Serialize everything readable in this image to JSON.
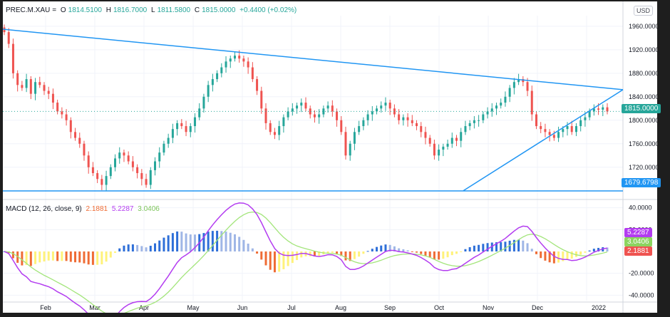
{
  "header": {
    "symbol": "PREC.M.XAU",
    "indicator": "=",
    "o_label": "O",
    "o_value": "1814.5100",
    "h_label": "H",
    "h_value": "1816.7000",
    "l_label": "L",
    "l_value": "1811.5800",
    "c_label": "C",
    "c_value": "1815.0000",
    "change": "+0.4400 (+0.02%)"
  },
  "currency_button": "USD",
  "macd_header": {
    "title": "MACD (12, 26, close, 9)",
    "hist_value": "2.1881",
    "macd_value": "5.2287",
    "signal_value": "3.0406"
  },
  "colors": {
    "up": "#26a69a",
    "down": "#ef5350",
    "line": "#2196f3",
    "macd_line": "#b33cf0",
    "signal_line": "#a3e57b",
    "hist_pos": "#2e6fd8",
    "hist_neg": "#ef6c35",
    "hist_fade": "#fff27a"
  },
  "chart_data": [
    {
      "type": "candlestick",
      "x_tick_labels": [
        "Feb",
        "Mar",
        "Apr",
        "May",
        "Jun",
        "Jul",
        "Aug",
        "Sep",
        "Oct",
        "Nov",
        "Dec",
        "2022"
      ],
      "y_tick_labels": [
        "1960.0000",
        "1920.0000",
        "1880.0000",
        "1840.0000",
        "1800.0000",
        "1760.0000",
        "1720.0000"
      ],
      "ylim": [
        1670,
        1978
      ],
      "price_label": "1815.0000",
      "line_label": "1679.6798",
      "horizontal_line": 1679.6798,
      "closes": [
        1950,
        1930,
        1880,
        1860,
        1855,
        1870,
        1845,
        1865,
        1860,
        1850,
        1845,
        1830,
        1815,
        1810,
        1800,
        1780,
        1770,
        1760,
        1740,
        1720,
        1710,
        1700,
        1690,
        1705,
        1720,
        1735,
        1745,
        1740,
        1730,
        1720,
        1710,
        1700,
        1690,
        1715,
        1730,
        1745,
        1760,
        1770,
        1785,
        1795,
        1790,
        1780,
        1790,
        1805,
        1820,
        1840,
        1860,
        1870,
        1880,
        1890,
        1900,
        1905,
        1910,
        1905,
        1900,
        1890,
        1870,
        1850,
        1820,
        1795,
        1780,
        1775,
        1790,
        1805,
        1815,
        1820,
        1825,
        1830,
        1820,
        1810,
        1805,
        1810,
        1820,
        1825,
        1815,
        1800,
        1780,
        1740,
        1760,
        1780,
        1790,
        1800,
        1810,
        1815,
        1820,
        1825,
        1830,
        1820,
        1810,
        1800,
        1805,
        1800,
        1795,
        1790,
        1780,
        1770,
        1760,
        1740,
        1750,
        1755,
        1760,
        1770,
        1765,
        1780,
        1790,
        1795,
        1800,
        1800,
        1810,
        1815,
        1820,
        1825,
        1830,
        1840,
        1855,
        1865,
        1870,
        1865,
        1850,
        1810,
        1790,
        1785,
        1780,
        1775,
        1770,
        1780,
        1785,
        1790,
        1780,
        1790,
        1800,
        1805,
        1815,
        1820,
        1818,
        1822,
        1815
      ],
      "trendlines": [
        {
          "from": [
            "start",
            1955
          ],
          "to": [
            "end",
            1852
          ]
        },
        {
          "from": [
            "Oct",
            1680
          ],
          "to": [
            "end",
            1852
          ]
        }
      ]
    },
    {
      "type": "macd",
      "y_tick_labels": [
        "40.0000",
        "20.0000",
        "-20.0000",
        "-40.0000"
      ],
      "ylim": [
        -45,
        45
      ],
      "params": "12, 26, close, 9",
      "macd_label": "5.2287",
      "signal_label": "3.0406",
      "hist_label": "2.1881"
    }
  ]
}
